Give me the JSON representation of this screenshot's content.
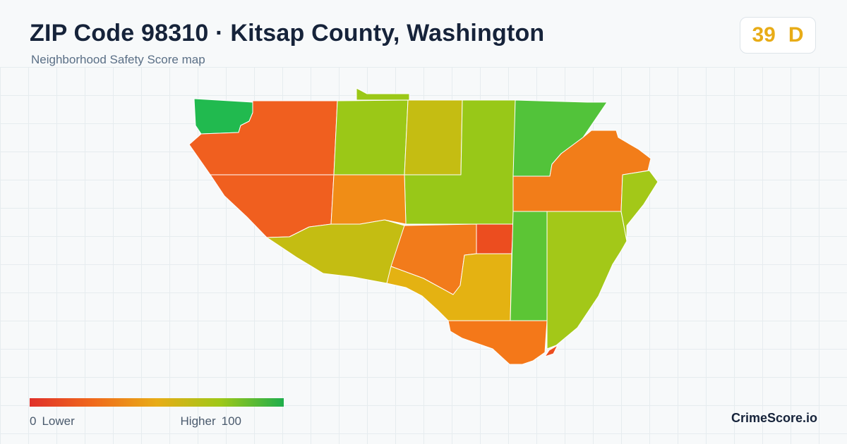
{
  "header": {
    "title": "ZIP Code 98310 · Kitsap County, Washington",
    "subtitle": "Neighborhood Safety Score map"
  },
  "score": {
    "value": "39",
    "grade": "D",
    "color": "#e8ac17"
  },
  "legend": {
    "min_value": "0",
    "min_label": "Lower",
    "max_label": "Higher",
    "max_value": "100",
    "gradient_colors": [
      "#e0302a",
      "#f06a1c",
      "#e8ac17",
      "#9fc818",
      "#1fae4c"
    ]
  },
  "map": {
    "regions": [
      {
        "name": "region-northwest-tip",
        "score": 90,
        "color": "#21ba4f"
      },
      {
        "name": "region-west-upper",
        "score": 18,
        "color": "#f05f1f"
      },
      {
        "name": "region-west-lower",
        "score": 18,
        "color": "#f05f1f"
      },
      {
        "name": "region-north-central-left",
        "score": 65,
        "color": "#9bc817"
      },
      {
        "name": "region-north-sliver",
        "score": 65,
        "color": "#9bc817"
      },
      {
        "name": "region-north-central",
        "score": 55,
        "color": "#c5bd12"
      },
      {
        "name": "region-north-center-right",
        "score": 66,
        "color": "#98c818"
      },
      {
        "name": "region-northeast-green",
        "score": 80,
        "color": "#52c33a"
      },
      {
        "name": "region-east-orange",
        "score": 28,
        "color": "#f27d19"
      },
      {
        "name": "region-center-orange",
        "score": 32,
        "color": "#f08d16"
      },
      {
        "name": "region-center-left-olive",
        "score": 58,
        "color": "#c4bd12"
      },
      {
        "name": "region-center-orange-south",
        "score": 27,
        "color": "#f27b1b"
      },
      {
        "name": "region-center-red",
        "score": 12,
        "color": "#ec4d1f"
      },
      {
        "name": "region-south-yellow",
        "score": 45,
        "color": "#e4b212"
      },
      {
        "name": "region-east-green-strip",
        "score": 78,
        "color": "#5cc535"
      },
      {
        "name": "region-southeast-lime",
        "score": 63,
        "color": "#a3c818"
      },
      {
        "name": "region-east-lime-upper",
        "score": 63,
        "color": "#a3c818"
      },
      {
        "name": "region-south-orange",
        "score": 25,
        "color": "#f47819"
      },
      {
        "name": "region-south-tip-red",
        "score": 12,
        "color": "#ec4d1f"
      }
    ]
  },
  "brand": {
    "name": "CrimeScore.io"
  }
}
